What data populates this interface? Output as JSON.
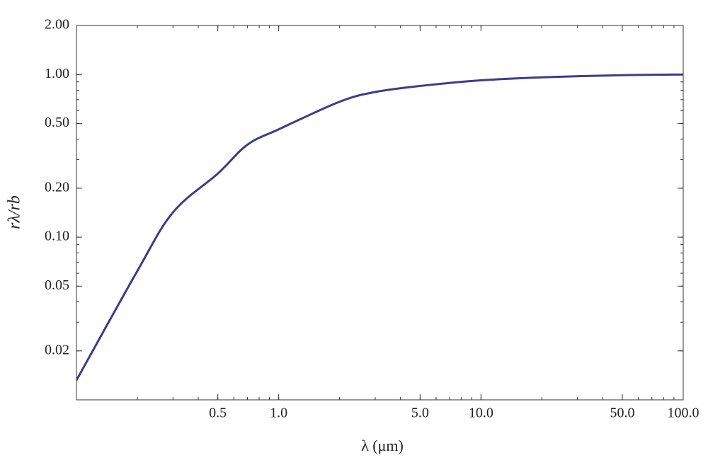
{
  "chart_data": {
    "type": "line",
    "x_label": "λ (μm)",
    "y_label": "rλ/rb",
    "x": [
      0.1,
      0.2,
      0.3,
      0.5,
      0.7,
      1,
      2,
      3,
      5,
      10,
      20,
      50,
      100
    ],
    "series": [
      {
        "color": "#3c3c8c",
        "values": [
          0.0132,
          0.062,
          0.142,
          0.246,
          0.37,
          0.46,
          0.68,
          0.78,
          0.85,
          0.92,
          0.96,
          0.99,
          1.0
        ]
      }
    ],
    "xlim": [
      0.1,
      100
    ],
    "ylim": [
      0.01,
      2
    ],
    "x_log": true,
    "y_log": true,
    "grid": false,
    "xticks": [
      0.5,
      {
        "value": 1,
        "label": "1.0"
      },
      {
        "value": 5,
        "label": "5.0"
      },
      {
        "value": 10,
        "label": "10.0"
      },
      {
        "value": 50,
        "label": "50.0"
      },
      {
        "value": 100,
        "label": "100.0"
      }
    ],
    "yticks": [
      0.02,
      0.05,
      {
        "value": 0.1,
        "label": "0.10"
      },
      {
        "value": 0.2,
        "label": "0.20"
      },
      {
        "value": 0.5,
        "label": "0.50"
      },
      {
        "value": 1,
        "label": "1.00"
      },
      {
        "value": 2,
        "label": "2.00"
      }
    ]
  }
}
